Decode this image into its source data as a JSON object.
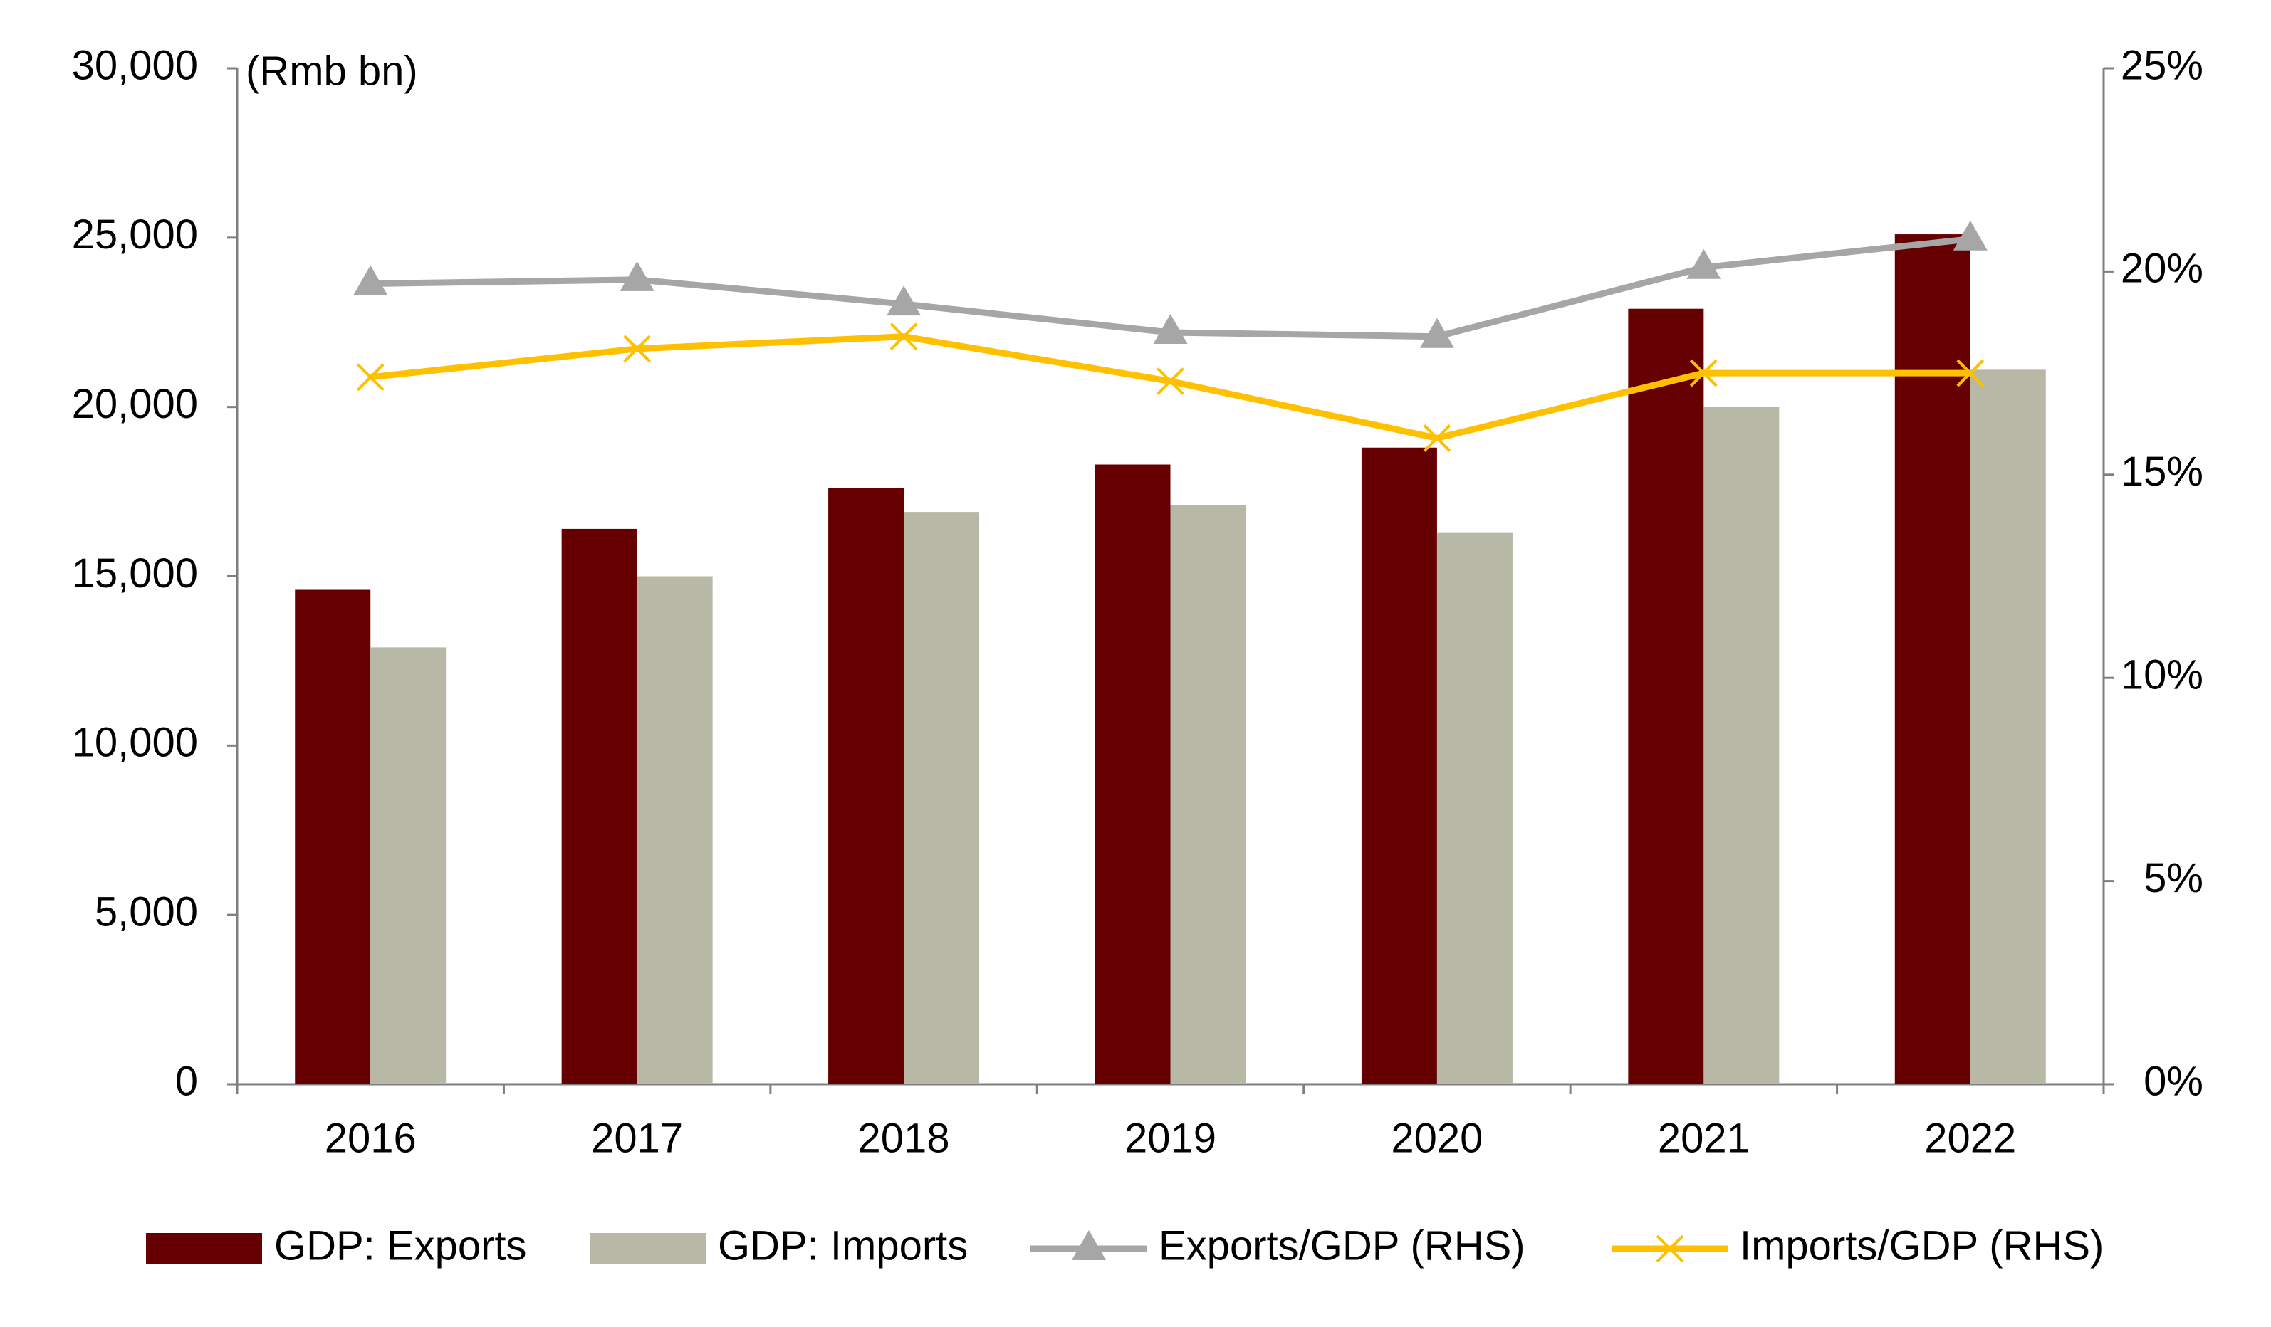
{
  "chart_data": {
    "type": "bar",
    "annotation": "(Rmb bn)",
    "categories": [
      "2016",
      "2017",
      "2018",
      "2019",
      "2020",
      "2021",
      "2022"
    ],
    "series": [
      {
        "name": "GDP: Exports",
        "type": "bar",
        "color": "#660000",
        "values": [
          14600,
          16400,
          17600,
          18300,
          18800,
          22900,
          25100
        ]
      },
      {
        "name": "GDP: Imports",
        "type": "bar",
        "color": "#b8b8a6",
        "values": [
          12900,
          15000,
          16900,
          17100,
          16300,
          20000,
          21100
        ]
      },
      {
        "name": "Exports/GDP (RHS)",
        "type": "line",
        "marker": "triangle",
        "axis": "y2",
        "color": "#a6a6a6",
        "values": [
          19.7,
          19.8,
          19.2,
          18.5,
          18.4,
          20.1,
          20.8
        ]
      },
      {
        "name": "Imports/GDP (RHS)",
        "type": "line",
        "marker": "x",
        "axis": "y2",
        "color": "#ffc000",
        "values": [
          17.4,
          18.1,
          18.4,
          17.3,
          15.9,
          17.5,
          17.5
        ]
      }
    ],
    "ylim": [
      0,
      30000
    ],
    "yticks": [
      0,
      {
        "value": 5000,
        "label": "5,000"
      },
      {
        "value": 10000,
        "label": "10,000"
      },
      {
        "value": 15000,
        "label": "15,000"
      },
      {
        "value": 20000,
        "label": "20,000"
      },
      {
        "value": 25000,
        "label": "25,000"
      },
      {
        "value": 30000,
        "label": "30,000"
      }
    ],
    "y2lim": [
      0,
      25
    ],
    "y2ticks": [
      {
        "value": 0,
        "label": "0%"
      },
      {
        "value": 5,
        "label": "5%"
      },
      {
        "value": 10,
        "label": "10%"
      },
      {
        "value": 15,
        "label": "15%"
      },
      {
        "value": 20,
        "label": "20%"
      },
      {
        "value": 25,
        "label": "25%"
      }
    ],
    "grid": false,
    "legend": "bottom"
  }
}
